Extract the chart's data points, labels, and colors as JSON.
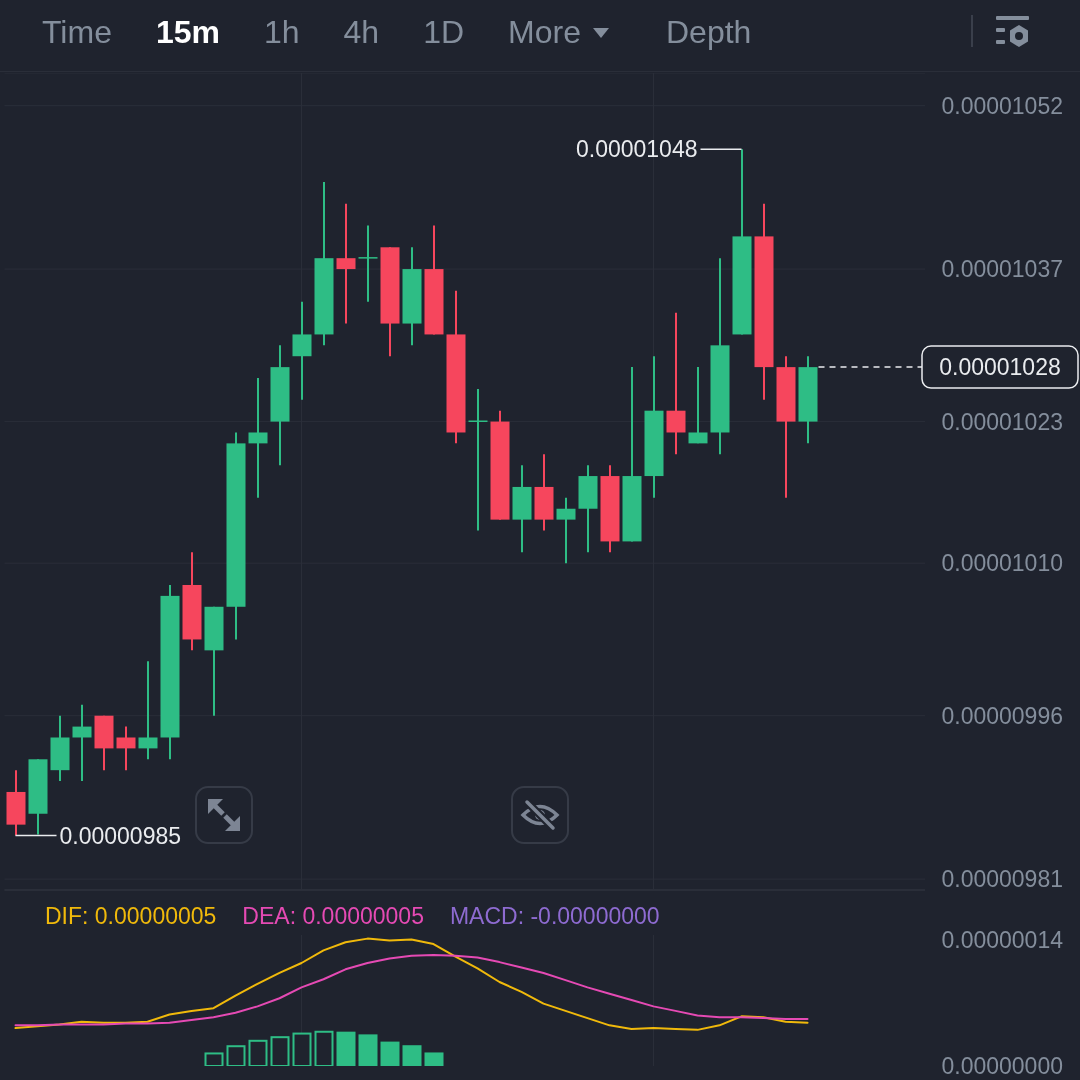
{
  "chart_data": [
    {
      "type": "other",
      "annotations": [
        "Time",
        "15m",
        "1h",
        "4h",
        "1D",
        "More",
        "Depth"
      ]
    },
    {
      "type": "candlestick",
      "categories": [
        null,
        null,
        null,
        null,
        null,
        null,
        null,
        null,
        null,
        null,
        null,
        null,
        null,
        null,
        null,
        null,
        null,
        null,
        null,
        null,
        null,
        null,
        null,
        null,
        null,
        null,
        null,
        null,
        null,
        null,
        null,
        null,
        null,
        null,
        null,
        null,
        null
      ],
      "ohlc": [
        [
          9.89e-06,
          9.91e-06,
          9.85e-06,
          9.86e-06
        ],
        [
          9.87e-06,
          9.92e-06,
          9.851e-06,
          9.92e-06
        ],
        [
          9.91e-06,
          9.96e-06,
          9.9e-06,
          9.94e-06
        ],
        [
          9.94e-06,
          9.97e-06,
          9.9e-06,
          9.95e-06
        ],
        [
          9.96e-06,
          9.96e-06,
          9.91e-06,
          9.93e-06
        ],
        [
          9.94e-06,
          9.95e-06,
          9.91e-06,
          9.93e-06
        ],
        [
          9.93e-06,
          1.001e-05,
          9.92e-06,
          9.94e-06
        ],
        [
          9.94e-06,
          1.008e-05,
          9.92e-06,
          1.007e-05
        ],
        [
          1.008e-05,
          1.011e-05,
          1.002e-05,
          1.003e-05
        ],
        [
          1.002e-05,
          1.006e-05,
          9.96e-06,
          1.006e-05
        ],
        [
          1.006e-05,
          1.022e-05,
          1.003e-05,
          1.021e-05
        ],
        [
          1.021e-05,
          1.027e-05,
          1.016e-05,
          1.022e-05
        ],
        [
          1.023e-05,
          1.03e-05,
          1.019e-05,
          1.028e-05
        ],
        [
          1.029e-05,
          1.034e-05,
          1.025e-05,
          1.031e-05
        ],
        [
          1.031e-05,
          1.045e-05,
          1.03e-05,
          1.038e-05
        ],
        [
          1.038e-05,
          1.043e-05,
          1.032e-05,
          1.037e-05
        ],
        [
          1.038e-05,
          1.041e-05,
          1.034e-05,
          1.0381e-05
        ],
        [
          1.039e-05,
          1.039e-05,
          1.029e-05,
          1.032e-05
        ],
        [
          1.032e-05,
          1.039e-05,
          1.03e-05,
          1.037e-05
        ],
        [
          1.037e-05,
          1.041e-05,
          1.031e-05,
          1.031e-05
        ],
        [
          1.031e-05,
          1.035e-05,
          1.021e-05,
          1.022e-05
        ],
        [
          1.023e-05,
          1.026e-05,
          1.013e-05,
          1.0231e-05
        ],
        [
          1.023e-05,
          1.024e-05,
          1.014e-05,
          1.014e-05
        ],
        [
          1.014e-05,
          1.019e-05,
          1.011e-05,
          1.017e-05
        ],
        [
          1.017e-05,
          1.02e-05,
          1.013e-05,
          1.014e-05
        ],
        [
          1.014e-05,
          1.016e-05,
          1.01e-05,
          1.015e-05
        ],
        [
          1.015e-05,
          1.019e-05,
          1.011e-05,
          1.018e-05
        ],
        [
          1.018e-05,
          1.019e-05,
          1.011e-05,
          1.012e-05
        ],
        [
          1.012e-05,
          1.028e-05,
          1.012e-05,
          1.018e-05
        ],
        [
          1.018e-05,
          1.029e-05,
          1.016e-05,
          1.024e-05
        ],
        [
          1.024e-05,
          1.033e-05,
          1.02e-05,
          1.022e-05
        ],
        [
          1.021e-05,
          1.028e-05,
          1.021e-05,
          1.022e-05
        ],
        [
          1.022e-05,
          1.038e-05,
          1.02e-05,
          1.03e-05
        ],
        [
          1.031e-05,
          1.048e-05,
          1.031e-05,
          1.04e-05
        ],
        [
          1.04e-05,
          1.043e-05,
          1.025e-05,
          1.028e-05
        ],
        [
          1.028e-05,
          1.029e-05,
          1.016e-05,
          1.023e-05
        ],
        [
          1.023e-05,
          1.029e-05,
          1.021e-05,
          1.028e-05
        ]
      ],
      "colors": [
        "#f6465d",
        "#2ebd85",
        "#2ebd85",
        "#2ebd85",
        "#f6465d",
        "#f6465d",
        "#2ebd85",
        "#2ebd85",
        "#f6465d",
        "#2ebd85",
        "#2ebd85",
        "#2ebd85",
        "#2ebd85",
        "#2ebd85",
        "#2ebd85",
        "#f6465d",
        "#2ebd85",
        "#f6465d",
        "#2ebd85",
        "#f6465d",
        "#f6465d",
        "#2ebd85",
        "#f6465d",
        "#2ebd85",
        "#f6465d",
        "#2ebd85",
        "#2ebd85",
        "#f6465d",
        "#2ebd85",
        "#2ebd85",
        "#f6465d",
        "#2ebd85",
        "#2ebd85",
        "#2ebd85",
        "#f6465d",
        "#f6465d",
        "#2ebd85"
      ],
      "ylim": [
        9.8e-06,
        1.055e-05
      ],
      "yticks": [
        {
          "value": 9.81e-06,
          "label": "0.00000981"
        },
        {
          "value": 9.96e-06,
          "label": "0.00000996"
        },
        {
          "value": 1.01e-05,
          "label": "0.00001010"
        },
        {
          "value": 1.023e-05,
          "label": "0.00001023"
        },
        {
          "value": 1.037e-05,
          "label": "0.00001037"
        },
        {
          "value": 1.052e-05,
          "label": "0.00001052"
        }
      ],
      "grid": "y",
      "ref_lines": [
        {
          "axis": "y",
          "value": 1.028e-05,
          "label": "0.00001028",
          "line_style": "dashed",
          "color": "#eaecef"
        }
      ],
      "annotations": [
        "0.00001048",
        "0.00000985"
      ]
    },
    {
      "type": "line",
      "categories": [
        null,
        null,
        null,
        null,
        null,
        null,
        null,
        null,
        null,
        null,
        null,
        null,
        null,
        null,
        null,
        null,
        null,
        null,
        null,
        null,
        null,
        null,
        null,
        null,
        null,
        null,
        null,
        null,
        null,
        null,
        null,
        null,
        null,
        null,
        null,
        null,
        null
      ],
      "series": [
        {
          "name": "DIF: 0.00000005",
          "color": "#f0b90b",
          "values": [
            4.2e-08,
            4.4e-08,
            4.6e-08,
            4.9e-08,
            4.8e-08,
            4.8e-08,
            4.9e-08,
            5.7e-08,
            6.1e-08,
            6.4e-08,
            7.8e-08,
            9.1e-08,
            1.03e-07,
            1.14e-07,
            1.28e-07,
            1.37e-07,
            1.41e-07,
            1.39e-07,
            1.4e-07,
            1.35e-07,
            1.21e-07,
            1.08e-07,
            9.3e-08,
            8.2e-08,
            6.9e-08,
            6.1e-08,
            5.3e-08,
            4.5e-08,
            4.1e-08,
            4.2e-08,
            4.1e-08,
            4e-08,
            4.5e-08,
            5.5e-08,
            5.4e-08,
            4.9e-08,
            4.8e-08
          ]
        },
        {
          "name": "DEA: 0.00000005",
          "color": "#e54ab4",
          "values": [
            4.5e-08,
            4.5e-08,
            4.6e-08,
            4.6e-08,
            4.6e-08,
            4.7e-08,
            4.7e-08,
            4.8e-08,
            5.1e-08,
            5.4e-08,
            5.9e-08,
            6.6e-08,
            7.5e-08,
            8.7e-08,
            9.6e-08,
            1.07e-07,
            1.14e-07,
            1.19e-07,
            1.22e-07,
            1.23e-07,
            1.22e-07,
            1.2e-07,
            1.15e-07,
            1.09e-07,
            1.03e-07,
            9.5e-08,
            8.7e-08,
            8e-08,
            7.3e-08,
            6.6e-08,
            6.1e-08,
            5.6e-08,
            5.4e-08,
            5.4e-08,
            5.3e-08,
            5.2e-08,
            5.2e-08
          ]
        },
        {
          "type": "bar",
          "color": "#2ebd85",
          "values": [
            null,
            null,
            null,
            null,
            null,
            null,
            null,
            null,
            null,
            1.5e-08,
            2.3e-08,
            2.9e-08,
            3.3e-08,
            3.7e-08,
            3.9e-08,
            3.8e-08,
            3.5e-08,
            2.7e-08,
            2.3e-08,
            1.5e-08,
            null,
            null,
            null,
            null,
            null,
            null,
            null,
            null,
            null,
            null,
            null,
            null,
            null,
            null,
            null,
            null,
            null
          ]
        }
      ],
      "annotations": [
        "MACD: -0.00000000"
      ],
      "ylim": [
        0,
        1.45e-07
      ],
      "yticks": [
        {
          "value": 0,
          "label": "0.00000000"
        },
        {
          "value": 1.4e-07,
          "label": "0.00000014"
        }
      ],
      "legend": "top left"
    }
  ]
}
